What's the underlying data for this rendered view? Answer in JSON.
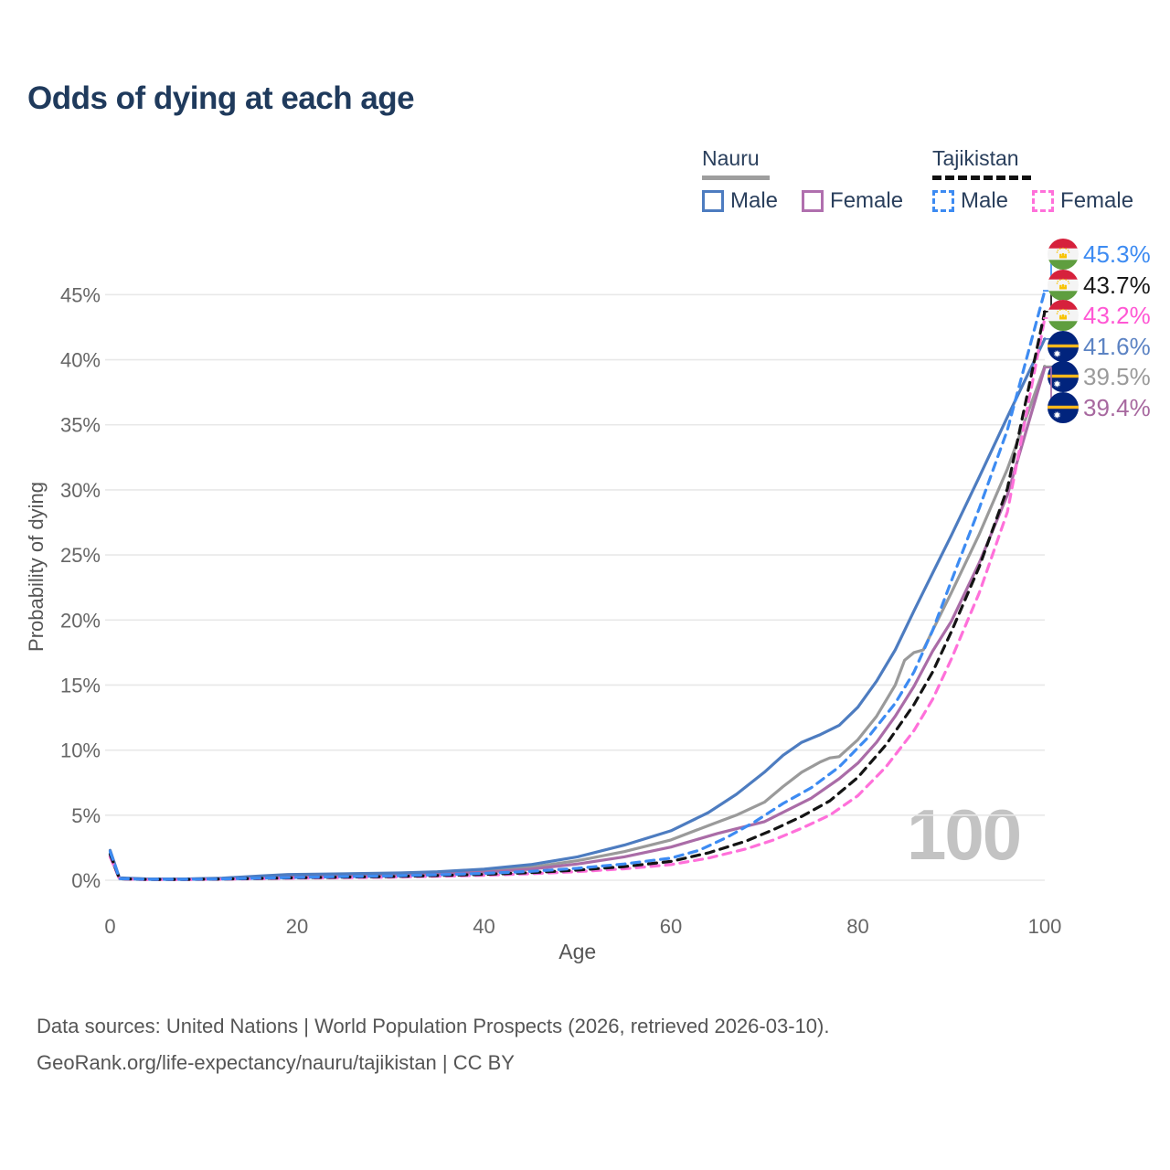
{
  "title": "Odds of dying at each age",
  "watermark": "100",
  "legend": {
    "groups": [
      {
        "name": "Nauru",
        "line_style": "solid",
        "underline_color": "#9e9e9e",
        "items": [
          {
            "label": "Male",
            "color": "#4d7cc0",
            "dashed": false
          },
          {
            "label": "Female",
            "color": "#b06fae",
            "dashed": false
          }
        ]
      },
      {
        "name": "Tajikistan",
        "line_style": "dashed",
        "underline_color": "#111111",
        "items": [
          {
            "label": "Male",
            "color": "#3d8bf2",
            "dashed": true
          },
          {
            "label": "Female",
            "color": "#ff70da",
            "dashed": true
          }
        ]
      }
    ]
  },
  "footer": {
    "line1": "Data sources: United Nations | World Population Prospects (2026, retrieved 2026-03-10).",
    "line2": "GeoRank.org/life-expectancy/nauru/tajikistan | CC BY"
  },
  "chart_data": {
    "type": "line",
    "title": "Odds of dying at each age",
    "xlabel": "Age",
    "ylabel": "Probability of dying",
    "xlim": [
      0,
      100
    ],
    "ylim_percent": [
      0,
      47
    ],
    "x_ticks": [
      0,
      20,
      40,
      60,
      80,
      100
    ],
    "y_ticks_percent": [
      0,
      5,
      10,
      15,
      20,
      25,
      30,
      35,
      40,
      45
    ],
    "grid": "horizontal",
    "legend_position": "top-right",
    "series": [
      {
        "name": "Nauru Both sexes",
        "country": "Nauru",
        "sex": "Both",
        "color": "#9a9a9a",
        "dashed": false,
        "flag": "nauru",
        "end_value": 39.5,
        "end_label": "39.5%",
        "label_color": "#9a9a9a",
        "points": [
          [
            0,
            2.05
          ],
          [
            1,
            0.15
          ],
          [
            4,
            0.09
          ],
          [
            8,
            0.09
          ],
          [
            12,
            0.14
          ],
          [
            16,
            0.26
          ],
          [
            19,
            0.36
          ],
          [
            23,
            0.41
          ],
          [
            27,
            0.45
          ],
          [
            31,
            0.49
          ],
          [
            35,
            0.56
          ],
          [
            40,
            0.73
          ],
          [
            45,
            1.0
          ],
          [
            50,
            1.5
          ],
          [
            55,
            2.2
          ],
          [
            60,
            3.1
          ],
          [
            64,
            4.2
          ],
          [
            67,
            5.0
          ],
          [
            70,
            6.0
          ],
          [
            72,
            7.2
          ],
          [
            74,
            8.3
          ],
          [
            76,
            9.1
          ],
          [
            77,
            9.4
          ],
          [
            78,
            9.5
          ],
          [
            80,
            10.8
          ],
          [
            82,
            12.6
          ],
          [
            84,
            15.0
          ],
          [
            85,
            16.9
          ],
          [
            86,
            17.5
          ],
          [
            87,
            17.7
          ],
          [
            88,
            19.2
          ],
          [
            90,
            22.1
          ],
          [
            93,
            26.6
          ],
          [
            96,
            31.6
          ],
          [
            100,
            39.5
          ]
        ]
      },
      {
        "name": "Nauru Female",
        "country": "Nauru",
        "sex": "Female",
        "color": "#aa6ca7",
        "dashed": false,
        "flag": "nauru",
        "end_value": 39.4,
        "end_label": "39.4%",
        "label_color": "#a7689f",
        "points": [
          [
            0,
            1.85
          ],
          [
            1,
            0.13
          ],
          [
            4,
            0.08
          ],
          [
            8,
            0.08
          ],
          [
            12,
            0.12
          ],
          [
            16,
            0.2
          ],
          [
            19,
            0.28
          ],
          [
            23,
            0.33
          ],
          [
            27,
            0.37
          ],
          [
            31,
            0.41
          ],
          [
            35,
            0.48
          ],
          [
            40,
            0.62
          ],
          [
            45,
            0.85
          ],
          [
            50,
            1.25
          ],
          [
            55,
            1.8
          ],
          [
            60,
            2.55
          ],
          [
            65,
            3.6
          ],
          [
            70,
            4.5
          ],
          [
            75,
            6.3
          ],
          [
            78,
            7.8
          ],
          [
            80,
            9.0
          ],
          [
            82,
            10.6
          ],
          [
            84,
            12.6
          ],
          [
            86,
            14.9
          ],
          [
            88,
            17.6
          ],
          [
            90,
            19.9
          ],
          [
            93,
            24.4
          ],
          [
            96,
            29.6
          ],
          [
            100,
            39.4
          ]
        ]
      },
      {
        "name": "Nauru Male",
        "country": "Nauru",
        "sex": "Male",
        "color": "#4d7cc0",
        "dashed": false,
        "flag": "nauru",
        "end_value": 41.6,
        "end_label": "41.6%",
        "label_color": "#5c83c3",
        "points": [
          [
            0,
            2.3
          ],
          [
            1,
            0.18
          ],
          [
            4,
            0.1
          ],
          [
            8,
            0.1
          ],
          [
            12,
            0.16
          ],
          [
            16,
            0.32
          ],
          [
            19,
            0.44
          ],
          [
            23,
            0.48
          ],
          [
            27,
            0.52
          ],
          [
            31,
            0.56
          ],
          [
            35,
            0.65
          ],
          [
            40,
            0.85
          ],
          [
            45,
            1.2
          ],
          [
            50,
            1.8
          ],
          [
            55,
            2.7
          ],
          [
            60,
            3.8
          ],
          [
            64,
            5.2
          ],
          [
            67,
            6.6
          ],
          [
            70,
            8.3
          ],
          [
            72,
            9.6
          ],
          [
            74,
            10.6
          ],
          [
            76,
            11.2
          ],
          [
            78,
            11.9
          ],
          [
            80,
            13.3
          ],
          [
            82,
            15.3
          ],
          [
            84,
            17.7
          ],
          [
            86,
            20.7
          ],
          [
            88,
            23.6
          ],
          [
            90,
            26.5
          ],
          [
            93,
            31.0
          ],
          [
            96,
            35.6
          ],
          [
            100,
            41.6
          ]
        ]
      },
      {
        "name": "Tajikistan Female",
        "country": "Tajikistan",
        "sex": "Female",
        "color": "#ff70da",
        "dashed": true,
        "flag": "tajikistan",
        "end_value": 43.2,
        "end_label": "43.2%",
        "label_color": "#ff57d4",
        "points": [
          [
            0,
            1.8
          ],
          [
            1,
            0.1
          ],
          [
            4,
            0.05
          ],
          [
            8,
            0.05
          ],
          [
            12,
            0.08
          ],
          [
            16,
            0.12
          ],
          [
            20,
            0.16
          ],
          [
            25,
            0.2
          ],
          [
            30,
            0.24
          ],
          [
            35,
            0.3
          ],
          [
            40,
            0.38
          ],
          [
            45,
            0.5
          ],
          [
            50,
            0.66
          ],
          [
            55,
            0.88
          ],
          [
            60,
            1.2
          ],
          [
            64,
            1.7
          ],
          [
            68,
            2.4
          ],
          [
            71,
            3.1
          ],
          [
            74,
            4.0
          ],
          [
            77,
            5.0
          ],
          [
            80,
            6.5
          ],
          [
            83,
            8.7
          ],
          [
            86,
            11.5
          ],
          [
            88,
            13.9
          ],
          [
            90,
            17.0
          ],
          [
            93,
            22.1
          ],
          [
            96,
            28.3
          ],
          [
            100,
            43.2
          ]
        ]
      },
      {
        "name": "Tajikistan Both sexes",
        "country": "Tajikistan",
        "sex": "Both",
        "color": "#141414",
        "dashed": true,
        "flag": "tajikistan",
        "end_value": 43.7,
        "end_label": "43.7%",
        "label_color": "#1a1a1a",
        "points": [
          [
            0,
            2.0
          ],
          [
            1,
            0.11
          ],
          [
            4,
            0.06
          ],
          [
            8,
            0.06
          ],
          [
            12,
            0.09
          ],
          [
            16,
            0.14
          ],
          [
            20,
            0.19
          ],
          [
            25,
            0.24
          ],
          [
            30,
            0.28
          ],
          [
            35,
            0.36
          ],
          [
            40,
            0.45
          ],
          [
            45,
            0.58
          ],
          [
            50,
            0.78
          ],
          [
            55,
            1.05
          ],
          [
            60,
            1.45
          ],
          [
            64,
            2.1
          ],
          [
            68,
            3.0
          ],
          [
            71,
            3.9
          ],
          [
            74,
            4.9
          ],
          [
            77,
            6.1
          ],
          [
            80,
            7.9
          ],
          [
            83,
            10.4
          ],
          [
            86,
            13.5
          ],
          [
            88,
            16.0
          ],
          [
            90,
            19.1
          ],
          [
            93,
            24.1
          ],
          [
            96,
            30.1
          ],
          [
            100,
            43.7
          ]
        ]
      },
      {
        "name": "Tajikistan Male",
        "country": "Tajikistan",
        "sex": "Male",
        "color": "#3d8bf2",
        "dashed": true,
        "flag": "tajikistan",
        "end_value": 45.3,
        "end_label": "45.3%",
        "label_color": "#3d8bf2",
        "points": [
          [
            0,
            2.2
          ],
          [
            1,
            0.12
          ],
          [
            4,
            0.07
          ],
          [
            8,
            0.07
          ],
          [
            12,
            0.1
          ],
          [
            16,
            0.16
          ],
          [
            20,
            0.22
          ],
          [
            25,
            0.28
          ],
          [
            30,
            0.33
          ],
          [
            35,
            0.42
          ],
          [
            40,
            0.53
          ],
          [
            45,
            0.68
          ],
          [
            50,
            0.92
          ],
          [
            55,
            1.25
          ],
          [
            60,
            1.7
          ],
          [
            63,
            2.3
          ],
          [
            66,
            3.3
          ],
          [
            69,
            4.5
          ],
          [
            72,
            5.9
          ],
          [
            75,
            7.1
          ],
          [
            78,
            8.7
          ],
          [
            81,
            10.9
          ],
          [
            84,
            13.6
          ],
          [
            86,
            16.0
          ],
          [
            88,
            19.2
          ],
          [
            90,
            23.0
          ],
          [
            93,
            28.6
          ],
          [
            96,
            34.6
          ],
          [
            100,
            45.3
          ]
        ]
      }
    ]
  }
}
